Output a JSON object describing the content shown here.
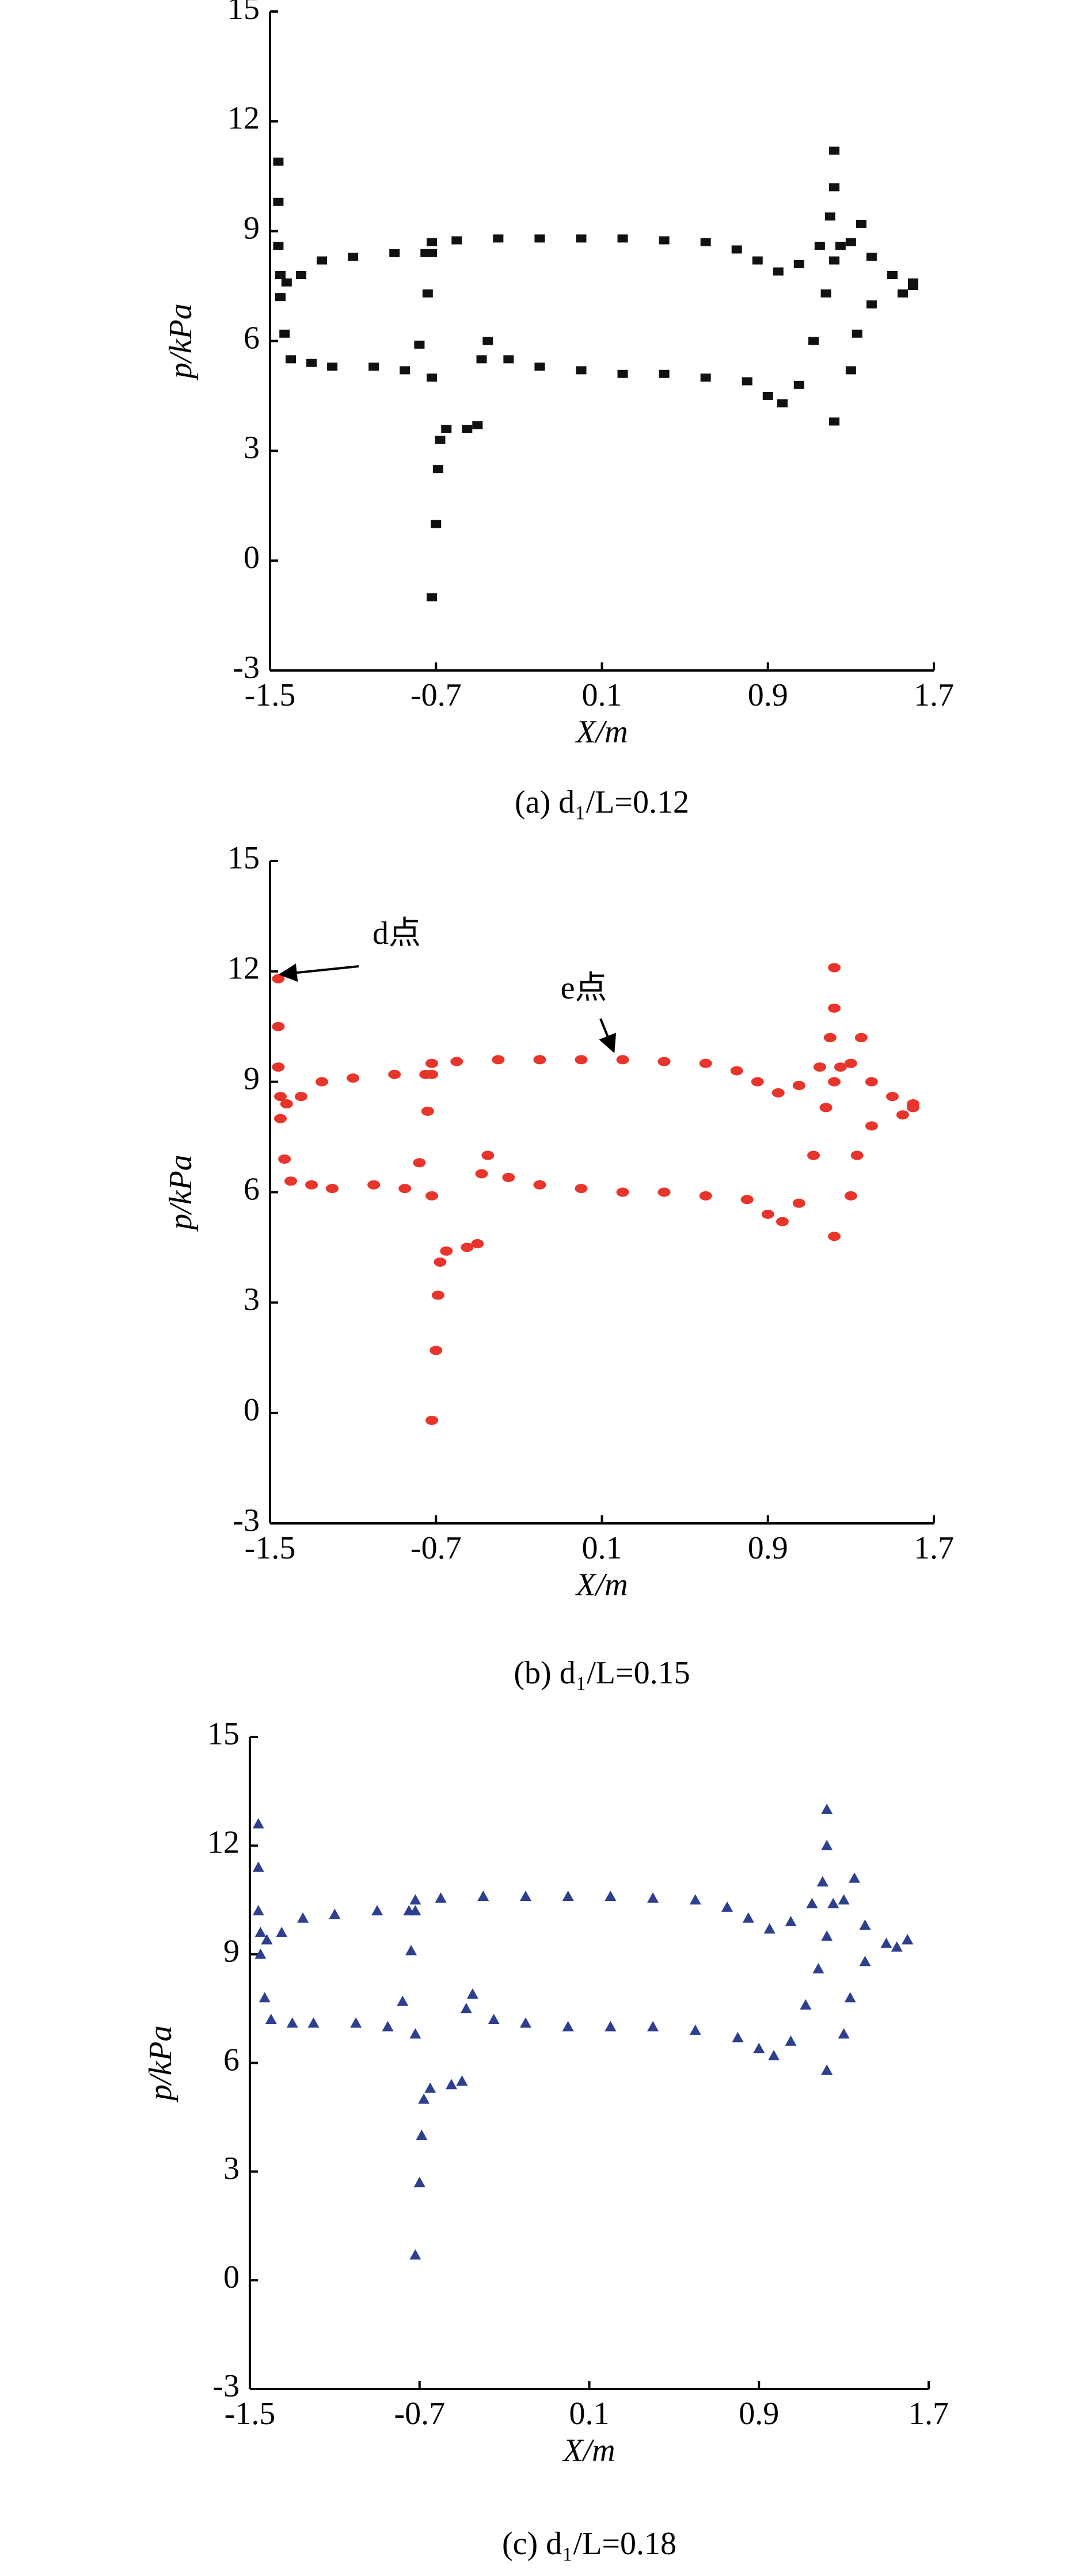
{
  "chart_data": [
    {
      "type": "scatter",
      "marker": "square",
      "color": "#111111",
      "caption": "(a) d₁/L=0.12",
      "xlabel": "X/m",
      "ylabel": "p/kPa",
      "xlim": [
        -1.5,
        1.7
      ],
      "xticks": [
        -1.5,
        -0.7,
        0.1,
        0.9,
        1.7
      ],
      "ylim": [
        -3,
        15
      ],
      "yticks": [
        -3,
        0,
        3,
        6,
        9,
        12,
        15
      ],
      "x": [
        -1.46,
        -1.46,
        -1.46,
        -1.45,
        -1.42,
        -1.35,
        -1.25,
        -1.1,
        -0.9,
        -0.75,
        -0.72,
        -0.6,
        -0.4,
        -0.2,
        0.0,
        0.2,
        0.4,
        0.6,
        0.75,
        0.85,
        0.95,
        1.05,
        1.15,
        1.2,
        1.22,
        1.22,
        1.25,
        1.3,
        1.35,
        1.4,
        1.5,
        1.6,
        -1.45,
        -1.43,
        -1.4,
        -1.3,
        -1.2,
        -1.0,
        -0.85,
        -0.78,
        -0.74,
        -0.72,
        -0.72,
        -0.72,
        -0.7,
        -0.69,
        -0.68,
        -0.65,
        -0.55,
        -0.5,
        -0.48,
        -0.45,
        -0.35,
        -0.2,
        0.0,
        0.2,
        0.4,
        0.6,
        0.8,
        0.9,
        0.97,
        1.05,
        1.12,
        1.18,
        1.22,
        1.22,
        1.3,
        1.33,
        1.4,
        1.55,
        1.6
      ],
      "values": [
        10.9,
        9.8,
        8.6,
        7.8,
        7.6,
        7.8,
        8.2,
        8.3,
        8.4,
        8.4,
        8.7,
        8.75,
        8.8,
        8.8,
        8.8,
        8.8,
        8.75,
        8.7,
        8.5,
        8.2,
        7.9,
        8.1,
        8.6,
        9.4,
        11.2,
        10.2,
        8.6,
        8.7,
        9.2,
        8.3,
        7.8,
        7.6,
        7.2,
        6.2,
        5.5,
        5.4,
        5.3,
        5.3,
        5.2,
        5.9,
        7.3,
        8.4,
        5.0,
        -1.0,
        1.0,
        2.5,
        3.3,
        3.6,
        3.6,
        3.7,
        5.5,
        6.0,
        5.5,
        5.3,
        5.2,
        5.1,
        5.1,
        5.0,
        4.9,
        4.5,
        4.3,
        4.8,
        6.0,
        7.3,
        8.2,
        3.8,
        5.2,
        6.2,
        7.0,
        7.3,
        7.5
      ]
    },
    {
      "type": "scatter",
      "marker": "ellipse",
      "color": "#e8352b",
      "caption": "(b) d₁/L=0.15",
      "xlabel": "X/m",
      "ylabel": "p/kPa",
      "annotations": [
        {
          "text": "d点"
        },
        {
          "text": "e点"
        }
      ],
      "xlim": [
        -1.5,
        1.7
      ],
      "xticks": [
        -1.5,
        -0.7,
        0.1,
        0.9,
        1.7
      ],
      "ylim": [
        -3,
        15
      ],
      "yticks": [
        -3,
        0,
        3,
        6,
        9,
        12,
        15
      ],
      "x": [
        -1.46,
        -1.46,
        -1.46,
        -1.45,
        -1.42,
        -1.35,
        -1.25,
        -1.1,
        -0.9,
        -0.75,
        -0.72,
        -0.6,
        -0.4,
        -0.2,
        0.0,
        0.2,
        0.4,
        0.6,
        0.75,
        0.85,
        0.95,
        1.05,
        1.15,
        1.2,
        1.22,
        1.22,
        1.25,
        1.3,
        1.35,
        1.4,
        1.5,
        1.6,
        -1.45,
        -1.43,
        -1.4,
        -1.3,
        -1.2,
        -1.0,
        -0.85,
        -0.78,
        -0.74,
        -0.72,
        -0.72,
        -0.72,
        -0.7,
        -0.69,
        -0.68,
        -0.65,
        -0.55,
        -0.5,
        -0.48,
        -0.45,
        -0.35,
        -0.2,
        0.0,
        0.2,
        0.4,
        0.6,
        0.8,
        0.9,
        0.97,
        1.05,
        1.12,
        1.18,
        1.22,
        1.22,
        1.3,
        1.33,
        1.4,
        1.55,
        1.6
      ],
      "values": [
        11.8,
        10.5,
        9.4,
        8.6,
        8.4,
        8.6,
        9.0,
        9.1,
        9.2,
        9.2,
        9.5,
        9.55,
        9.6,
        9.6,
        9.6,
        9.6,
        9.55,
        9.5,
        9.3,
        9.0,
        8.7,
        8.9,
        9.4,
        10.2,
        12.1,
        11.0,
        9.4,
        9.5,
        10.2,
        9.0,
        8.6,
        8.4,
        8.0,
        6.9,
        6.3,
        6.2,
        6.1,
        6.2,
        6.1,
        6.8,
        8.2,
        9.2,
        5.9,
        -0.2,
        1.7,
        3.2,
        4.1,
        4.4,
        4.5,
        4.6,
        6.5,
        7.0,
        6.4,
        6.2,
        6.1,
        6.0,
        6.0,
        5.9,
        5.8,
        5.4,
        5.2,
        5.7,
        7.0,
        8.3,
        9.0,
        4.8,
        5.9,
        7.0,
        7.8,
        8.1,
        8.3
      ]
    },
    {
      "type": "scatter",
      "marker": "triangle",
      "color": "#2e3f8f",
      "caption": "(c) d₁/L=0.18",
      "xlabel": "X/m",
      "ylabel": "p/kPa",
      "xlim": [
        -1.5,
        1.7
      ],
      "xticks": [
        -1.5,
        -0.7,
        0.1,
        0.9,
        1.7
      ],
      "ylim": [
        -3,
        15
      ],
      "yticks": [
        -3,
        0,
        3,
        6,
        9,
        12,
        15
      ],
      "x": [
        -1.46,
        -1.46,
        -1.46,
        -1.45,
        -1.42,
        -1.35,
        -1.25,
        -1.1,
        -0.9,
        -0.75,
        -0.72,
        -0.6,
        -0.4,
        -0.2,
        0.0,
        0.2,
        0.4,
        0.6,
        0.75,
        0.85,
        0.95,
        1.05,
        1.15,
        1.2,
        1.22,
        1.22,
        1.25,
        1.3,
        1.35,
        1.4,
        1.5,
        1.6,
        -1.45,
        -1.43,
        -1.4,
        -1.3,
        -1.2,
        -1.0,
        -0.85,
        -0.78,
        -0.74,
        -0.72,
        -0.72,
        -0.72,
        -0.7,
        -0.69,
        -0.68,
        -0.65,
        -0.55,
        -0.5,
        -0.48,
        -0.45,
        -0.35,
        -0.2,
        0.0,
        0.2,
        0.4,
        0.6,
        0.8,
        0.9,
        0.97,
        1.05,
        1.12,
        1.18,
        1.22,
        1.22,
        1.3,
        1.33,
        1.4,
        1.55,
        1.6
      ],
      "values": [
        12.6,
        11.4,
        10.2,
        9.6,
        9.4,
        9.6,
        10.0,
        10.1,
        10.2,
        10.2,
        10.5,
        10.55,
        10.6,
        10.6,
        10.6,
        10.6,
        10.55,
        10.5,
        10.3,
        10.0,
        9.7,
        9.9,
        10.4,
        11.0,
        13.0,
        12.0,
        10.4,
        10.5,
        11.1,
        9.8,
        9.3,
        9.4,
        9.0,
        7.8,
        7.2,
        7.1,
        7.1,
        7.1,
        7.0,
        7.7,
        9.1,
        10.2,
        6.8,
        0.7,
        2.7,
        4.0,
        5.0,
        5.3,
        5.4,
        5.5,
        7.5,
        7.9,
        7.2,
        7.1,
        7.0,
        7.0,
        7.0,
        6.9,
        6.7,
        6.4,
        6.2,
        6.6,
        7.6,
        8.6,
        9.5,
        5.8,
        6.8,
        7.8,
        8.8,
        9.2,
        9.4
      ]
    }
  ]
}
